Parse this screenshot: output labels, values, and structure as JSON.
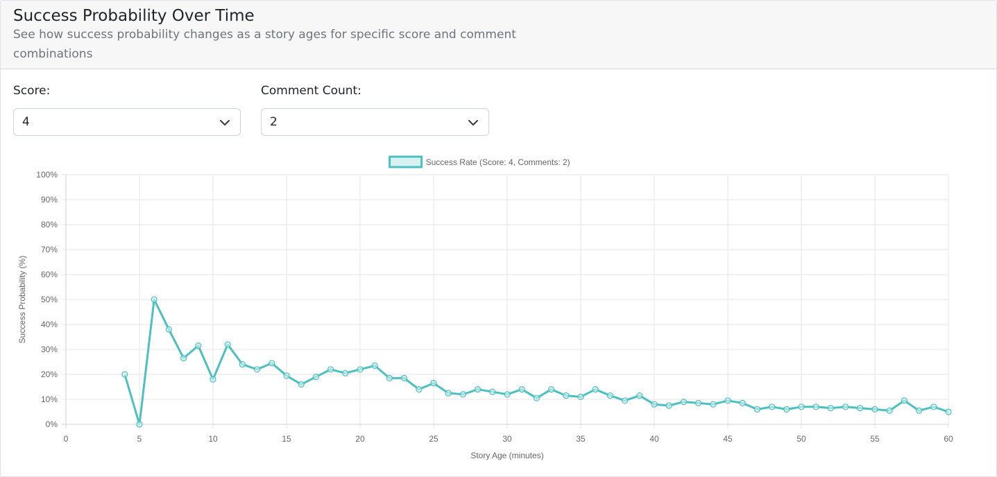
{
  "header": {
    "title": "Success Probability Over Time",
    "subtitle": "See how success probability changes as a story ages for specific score and comment combinations"
  },
  "controls": {
    "score": {
      "label": "Score:",
      "value": "4"
    },
    "comments": {
      "label": "Comment Count:",
      "value": "2"
    }
  },
  "colors": {
    "series": "#4bc0c0",
    "series_fill": "#d8f2f2",
    "grid": "#e5e5e5",
    "tick_text": "#666666"
  },
  "chart_data": {
    "type": "line",
    "title": "",
    "xlabel": "Story Age (minutes)",
    "ylabel": "Success Probability (%)",
    "xlim": [
      0,
      60
    ],
    "ylim": [
      0,
      100
    ],
    "x_ticks": [
      "0",
      "5",
      "10",
      "15",
      "20",
      "25",
      "30",
      "35",
      "40",
      "45",
      "50",
      "55",
      "60"
    ],
    "y_ticks": [
      "0%",
      "10%",
      "20%",
      "30%",
      "40%",
      "50%",
      "60%",
      "70%",
      "80%",
      "90%",
      "100%"
    ],
    "grid": true,
    "legend_position": "top",
    "series": [
      {
        "name": "Success Rate (Score: 4, Comments: 2)",
        "x": [
          4,
          5,
          6,
          7,
          8,
          9,
          10,
          11,
          12,
          13,
          14,
          15,
          16,
          17,
          18,
          19,
          20,
          21,
          22,
          23,
          24,
          25,
          26,
          27,
          28,
          29,
          30,
          31,
          32,
          33,
          34,
          35,
          36,
          37,
          38,
          39,
          40,
          41,
          42,
          43,
          44,
          45,
          46,
          47,
          48,
          49,
          50,
          51,
          52,
          53,
          54,
          55,
          56,
          57,
          58,
          59,
          60
        ],
        "values": [
          20,
          0,
          50,
          38,
          26.5,
          31.5,
          18,
          32,
          24,
          22,
          24.5,
          19.5,
          16,
          19,
          22,
          20.5,
          22,
          23.5,
          18.5,
          18.5,
          14,
          16.5,
          12.5,
          12,
          14,
          13,
          12,
          14,
          10.5,
          14,
          11.5,
          11,
          14,
          11.5,
          9.5,
          11.5,
          8,
          7.5,
          9,
          8.5,
          8,
          9.5,
          8.5,
          6,
          7,
          6,
          7,
          7,
          6.5,
          7,
          6.5,
          6,
          5.5,
          9.5,
          5.5,
          7,
          5
        ]
      }
    ]
  }
}
